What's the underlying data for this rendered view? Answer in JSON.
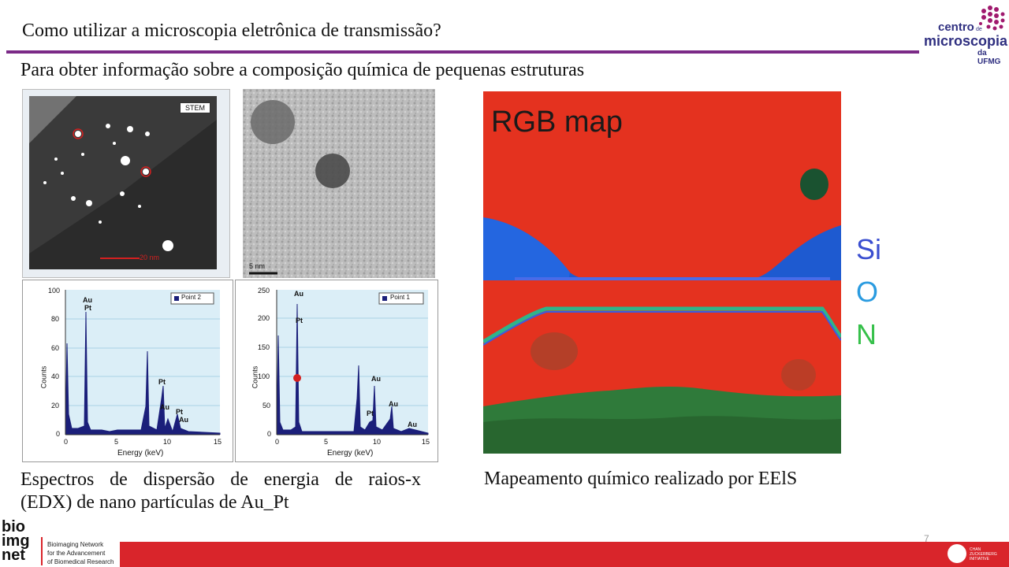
{
  "header": {
    "title": "Como utilizar a microscopia eletrônica de transmissão?",
    "subtitle": "Para obter informação sobre a composição química de pequenas estruturas"
  },
  "logo_centro": {
    "line1": "centro",
    "line1b": "de",
    "line2": "microscopia",
    "line3": "da UFMG"
  },
  "stem": {
    "label": "STEM",
    "scale": "20 nm"
  },
  "tem": {
    "scale": "5 nm"
  },
  "spectra": [
    {
      "legend": "Point 2",
      "ylabel": "Counts",
      "xlabel": "Energy (keV)",
      "yticks": [
        "100",
        "80",
        "60",
        "40",
        "20",
        "0"
      ],
      "xticks": [
        "0",
        "5",
        "10",
        "15"
      ],
      "peaks": [
        "Au",
        "Pt",
        "Pt",
        "Au",
        "Pt",
        "Au"
      ]
    },
    {
      "legend": "Point 1",
      "ylabel": "Counts",
      "xlabel": "Energy (keV)",
      "yticks": [
        "250",
        "200",
        "150",
        "100",
        "50",
        "0"
      ],
      "xticks": [
        "0",
        "5",
        "10",
        "15"
      ],
      "peaks": [
        "Au",
        "Pt",
        "Au",
        "Pt",
        "Au",
        "Au"
      ]
    }
  ],
  "rgbmap": {
    "title": "RGB map"
  },
  "legend": {
    "si": "Si",
    "o": "O",
    "n": "N"
  },
  "captions": {
    "left_line1": "Espectros de dispersão de energia de raios-x",
    "left_line2": "(EDX) de nano partículas de Au_Pt",
    "right": "Mapeamento químico realizado por EElS"
  },
  "footer": {
    "page": "7",
    "bioimg_logo": [
      "bio",
      "img",
      "net"
    ],
    "bioimg_desc": [
      "Bioimaging Network",
      "for the Advancement",
      "of Biomedical Research"
    ],
    "czi": [
      "CHAN",
      "ZUCKERBERG",
      "INITIATIVE"
    ]
  }
}
